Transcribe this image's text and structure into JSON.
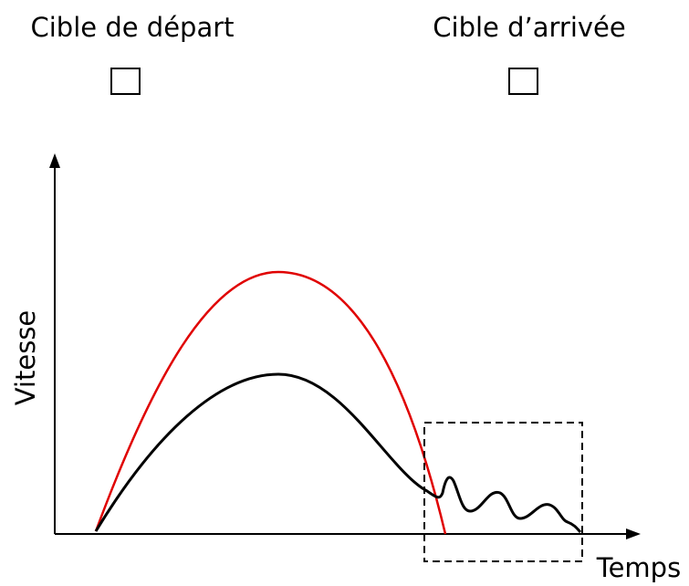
{
  "targets": {
    "start": "Cible de départ",
    "end": "Cible d’arrivée"
  },
  "axes": {
    "y_label": "Vitesse",
    "x_label": "Temps"
  }
}
